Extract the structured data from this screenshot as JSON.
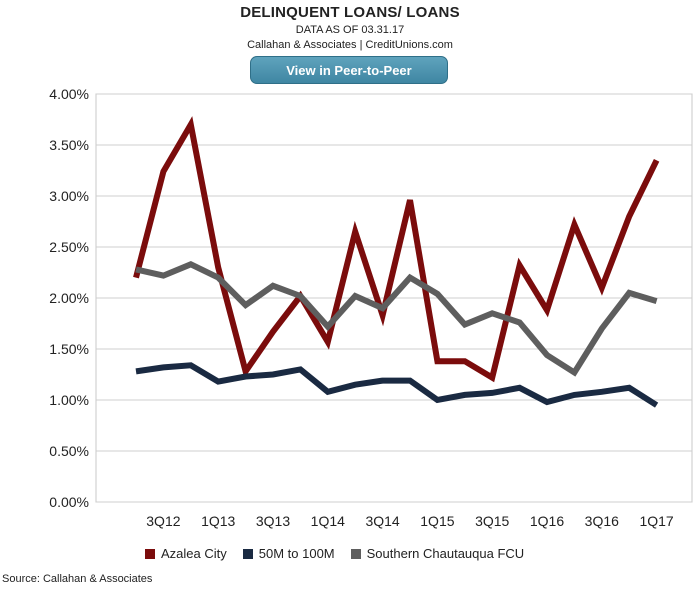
{
  "header": {
    "title": "DELINQUENT LOANS/ LOANS",
    "subtitle": "DATA AS OF 03.31.17",
    "attribution": "Callahan & Associates | CreditUnions.com"
  },
  "toolbar": {
    "peer_button_label": "View in Peer-to-Peer"
  },
  "footer": {
    "source": "Source: Callahan & Associates"
  },
  "chart_data": {
    "type": "line",
    "x": [
      "2Q12",
      "3Q12",
      "4Q12",
      "1Q13",
      "2Q13",
      "3Q13",
      "4Q13",
      "1Q14",
      "2Q14",
      "3Q14",
      "4Q14",
      "1Q15",
      "2Q15",
      "3Q15",
      "4Q15",
      "1Q16",
      "2Q16",
      "3Q16",
      "4Q16",
      "1Q17"
    ],
    "x_tick_labels": [
      "3Q12",
      "1Q13",
      "3Q13",
      "1Q14",
      "3Q14",
      "1Q15",
      "3Q15",
      "1Q16",
      "3Q16",
      "1Q17"
    ],
    "ylim": [
      0,
      4
    ],
    "y_ticks": [
      0,
      0.5,
      1.0,
      1.5,
      2.0,
      2.5,
      3.0,
      3.5,
      4.0
    ],
    "y_tick_labels": [
      "0.00%",
      "0.50%",
      "1.00%",
      "1.50%",
      "2.00%",
      "2.50%",
      "3.00%",
      "3.50%",
      "4.00%"
    ],
    "grid": "horizontal",
    "legend_position": "bottom",
    "series": [
      {
        "name": "Azalea City",
        "color": "#7b0c0c",
        "values": [
          2.2,
          3.24,
          3.7,
          2.3,
          1.28,
          1.67,
          2.02,
          1.57,
          2.65,
          1.83,
          2.96,
          1.38,
          1.38,
          1.22,
          2.32,
          1.88,
          2.72,
          2.1,
          2.8,
          3.35
        ]
      },
      {
        "name": "50M to 100M",
        "color": "#1a2a42",
        "values": [
          1.28,
          1.32,
          1.34,
          1.18,
          1.23,
          1.25,
          1.3,
          1.08,
          1.15,
          1.19,
          1.19,
          1.0,
          1.05,
          1.07,
          1.12,
          0.98,
          1.05,
          1.08,
          1.12,
          0.95
        ]
      },
      {
        "name": "Southern Chautauqua FCU",
        "color": "#5e5e5e",
        "values": [
          2.28,
          2.22,
          2.33,
          2.2,
          1.93,
          2.12,
          2.02,
          1.72,
          2.02,
          1.9,
          2.2,
          2.04,
          1.74,
          1.85,
          1.76,
          1.44,
          1.27,
          1.7,
          2.05,
          1.97
        ]
      }
    ]
  }
}
